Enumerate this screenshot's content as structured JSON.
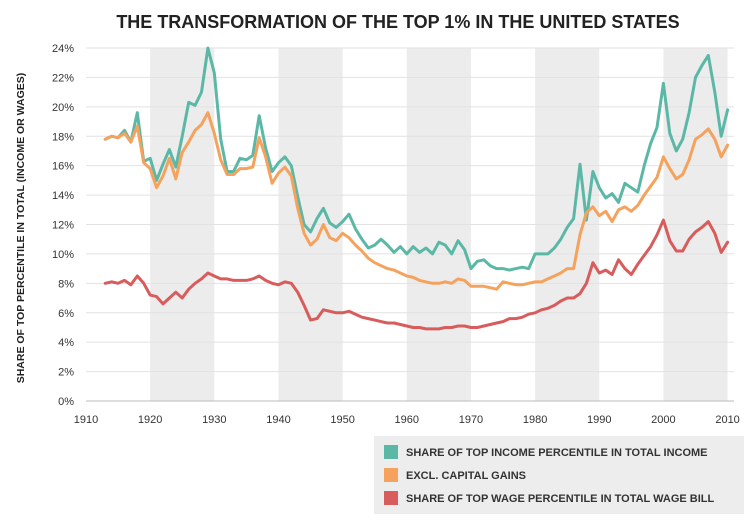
{
  "chart_data": {
    "type": "line",
    "title": "THE TRANSFORMATION OF THE TOP 1% IN THE UNITED STATES",
    "ylabel": "SHARE OF TOP PERCENTILE IN TOTAL (INCOME OR WAGES)",
    "xlabel": "",
    "xlim": [
      1910,
      2011
    ],
    "ylim": [
      0,
      24
    ],
    "x_ticks": [
      "1910",
      "1920",
      "1930",
      "1940",
      "1950",
      "1960",
      "1970",
      "1980",
      "1990",
      "2000",
      "2010"
    ],
    "y_ticks": [
      "0%",
      "2%",
      "4%",
      "6%",
      "8%",
      "10%",
      "12%",
      "14%",
      "16%",
      "18%",
      "20%",
      "22%",
      "24%"
    ],
    "shaded_decades": [
      [
        1920,
        1930
      ],
      [
        1940,
        1950
      ],
      [
        1960,
        1970
      ],
      [
        1980,
        1990
      ],
      [
        2000,
        2010
      ]
    ],
    "legend_position": "bottom-right",
    "series": [
      {
        "name": "SHARE OF TOP INCOME PERCENTILE IN TOTAL INCOME",
        "color": "#5bb8a6",
        "x": [
          1913,
          1914,
          1915,
          1916,
          1917,
          1918,
          1919,
          1920,
          1921,
          1922,
          1923,
          1924,
          1925,
          1926,
          1927,
          1928,
          1929,
          1930,
          1931,
          1932,
          1933,
          1934,
          1935,
          1936,
          1937,
          1938,
          1939,
          1940,
          1941,
          1942,
          1943,
          1944,
          1945,
          1946,
          1947,
          1948,
          1949,
          1950,
          1951,
          1952,
          1953,
          1954,
          1955,
          1956,
          1957,
          1958,
          1959,
          1960,
          1961,
          1962,
          1963,
          1964,
          1965,
          1966,
          1967,
          1968,
          1969,
          1970,
          1971,
          1972,
          1973,
          1974,
          1975,
          1976,
          1977,
          1978,
          1979,
          1980,
          1981,
          1982,
          1983,
          1984,
          1985,
          1986,
          1987,
          1988,
          1989,
          1990,
          1991,
          1992,
          1993,
          1994,
          1995,
          1996,
          1997,
          1998,
          1999,
          2000,
          2001,
          2002,
          2003,
          2004,
          2005,
          2006,
          2007,
          2008,
          2009,
          2010
        ],
        "values": [
          17.8,
          18.0,
          17.9,
          18.4,
          17.6,
          19.6,
          16.3,
          16.5,
          15.0,
          16.1,
          17.1,
          15.9,
          18.0,
          20.3,
          20.1,
          21.0,
          24.0,
          22.3,
          17.8,
          15.6,
          15.6,
          16.5,
          16.4,
          16.7,
          19.4,
          17.2,
          15.6,
          16.2,
          16.6,
          16.0,
          13.9,
          12.0,
          11.5,
          12.4,
          13.1,
          12.1,
          11.8,
          12.2,
          12.7,
          11.7,
          11.0,
          10.4,
          10.6,
          11.0,
          10.6,
          10.1,
          10.5,
          10.0,
          10.5,
          10.1,
          10.4,
          10.0,
          10.8,
          10.6,
          10.0,
          10.9,
          10.3,
          9.0,
          9.5,
          9.6,
          9.2,
          9.0,
          9.0,
          8.9,
          9.0,
          9.1,
          9.0,
          10.0,
          10.0,
          10.0,
          10.4,
          11.0,
          11.8,
          12.4,
          16.1,
          12.3,
          15.6,
          14.5,
          13.8,
          14.1,
          13.5,
          14.8,
          14.5,
          14.2,
          16.0,
          17.5,
          18.6,
          21.6,
          18.2,
          17.0,
          17.8,
          19.6,
          22.0,
          22.8,
          23.5,
          21.0,
          18.0,
          19.8
        ]
      },
      {
        "name": "EXCL. CAPITAL GAINS",
        "color": "#f5a25d",
        "x": [
          1913,
          1914,
          1915,
          1916,
          1917,
          1918,
          1919,
          1920,
          1921,
          1922,
          1923,
          1924,
          1925,
          1926,
          1927,
          1928,
          1929,
          1930,
          1931,
          1932,
          1933,
          1934,
          1935,
          1936,
          1937,
          1938,
          1939,
          1940,
          1941,
          1942,
          1943,
          1944,
          1945,
          1946,
          1947,
          1948,
          1949,
          1950,
          1951,
          1952,
          1953,
          1954,
          1955,
          1956,
          1957,
          1958,
          1959,
          1960,
          1961,
          1962,
          1963,
          1964,
          1965,
          1966,
          1967,
          1968,
          1969,
          1970,
          1971,
          1972,
          1973,
          1974,
          1975,
          1976,
          1977,
          1978,
          1979,
          1980,
          1981,
          1982,
          1983,
          1984,
          1985,
          1986,
          1987,
          1988,
          1989,
          1990,
          1991,
          1992,
          1993,
          1994,
          1995,
          1996,
          1997,
          1998,
          1999,
          2000,
          2001,
          2002,
          2003,
          2004,
          2005,
          2006,
          2007,
          2008,
          2009,
          2010
        ],
        "values": [
          17.8,
          18.0,
          17.9,
          18.2,
          17.6,
          18.7,
          16.2,
          15.8,
          14.5,
          15.3,
          16.5,
          15.1,
          16.9,
          17.6,
          18.4,
          18.8,
          19.6,
          18.2,
          16.4,
          15.4,
          15.4,
          15.8,
          15.8,
          15.9,
          17.9,
          16.6,
          14.8,
          15.5,
          15.9,
          15.3,
          13.1,
          11.4,
          10.6,
          11.0,
          12.0,
          11.1,
          10.9,
          11.4,
          11.1,
          10.6,
          10.2,
          9.7,
          9.4,
          9.2,
          9.0,
          8.9,
          8.7,
          8.5,
          8.4,
          8.2,
          8.1,
          8.0,
          8.0,
          8.1,
          8.0,
          8.3,
          8.2,
          7.8,
          7.8,
          7.8,
          7.7,
          7.6,
          8.1,
          8.0,
          7.9,
          7.9,
          8.0,
          8.1,
          8.1,
          8.3,
          8.5,
          8.7,
          9.0,
          9.0,
          11.3,
          12.8,
          13.2,
          12.6,
          12.9,
          12.2,
          13.0,
          13.2,
          12.9,
          13.3,
          14.0,
          14.6,
          15.2,
          16.6,
          15.8,
          15.1,
          15.4,
          16.4,
          17.8,
          18.1,
          18.5,
          17.8,
          16.6,
          17.4
        ]
      },
      {
        "name": "SHARE OF TOP WAGE PERCENTILE IN TOTAL WAGE BILL",
        "color": "#d85c5c",
        "x": [
          1913,
          1914,
          1915,
          1916,
          1917,
          1918,
          1919,
          1920,
          1921,
          1922,
          1923,
          1924,
          1925,
          1926,
          1927,
          1928,
          1929,
          1930,
          1931,
          1932,
          1933,
          1934,
          1935,
          1936,
          1937,
          1938,
          1939,
          1940,
          1941,
          1942,
          1943,
          1944,
          1945,
          1946,
          1947,
          1948,
          1949,
          1950,
          1951,
          1952,
          1953,
          1954,
          1955,
          1956,
          1957,
          1958,
          1959,
          1960,
          1961,
          1962,
          1963,
          1964,
          1965,
          1966,
          1967,
          1968,
          1969,
          1970,
          1971,
          1972,
          1973,
          1974,
          1975,
          1976,
          1977,
          1978,
          1979,
          1980,
          1981,
          1982,
          1983,
          1984,
          1985,
          1986,
          1987,
          1988,
          1989,
          1990,
          1991,
          1992,
          1993,
          1994,
          1995,
          1996,
          1997,
          1998,
          1999,
          2000,
          2001,
          2002,
          2003,
          2004,
          2005,
          2006,
          2007,
          2008,
          2009,
          2010
        ],
        "values": [
          8.0,
          8.1,
          8.0,
          8.2,
          7.9,
          8.5,
          8.0,
          7.2,
          7.1,
          6.6,
          7.0,
          7.4,
          7.0,
          7.6,
          8.0,
          8.3,
          8.7,
          8.5,
          8.3,
          8.3,
          8.2,
          8.2,
          8.2,
          8.3,
          8.5,
          8.2,
          8.0,
          7.9,
          8.1,
          8.0,
          7.4,
          6.5,
          5.5,
          5.6,
          6.2,
          6.1,
          6.0,
          6.0,
          6.1,
          5.9,
          5.7,
          5.6,
          5.5,
          5.4,
          5.3,
          5.3,
          5.2,
          5.1,
          5.0,
          5.0,
          4.9,
          4.9,
          4.9,
          5.0,
          5.0,
          5.1,
          5.1,
          5.0,
          5.0,
          5.1,
          5.2,
          5.3,
          5.4,
          5.6,
          5.6,
          5.7,
          5.9,
          6.0,
          6.2,
          6.3,
          6.5,
          6.8,
          7.0,
          7.0,
          7.3,
          8.0,
          9.4,
          8.7,
          8.9,
          8.6,
          9.6,
          9.0,
          8.6,
          9.3,
          9.9,
          10.5,
          11.3,
          12.3,
          10.9,
          10.2,
          10.2,
          11.0,
          11.5,
          11.8,
          12.2,
          11.4,
          10.1,
          10.8
        ]
      }
    ]
  }
}
